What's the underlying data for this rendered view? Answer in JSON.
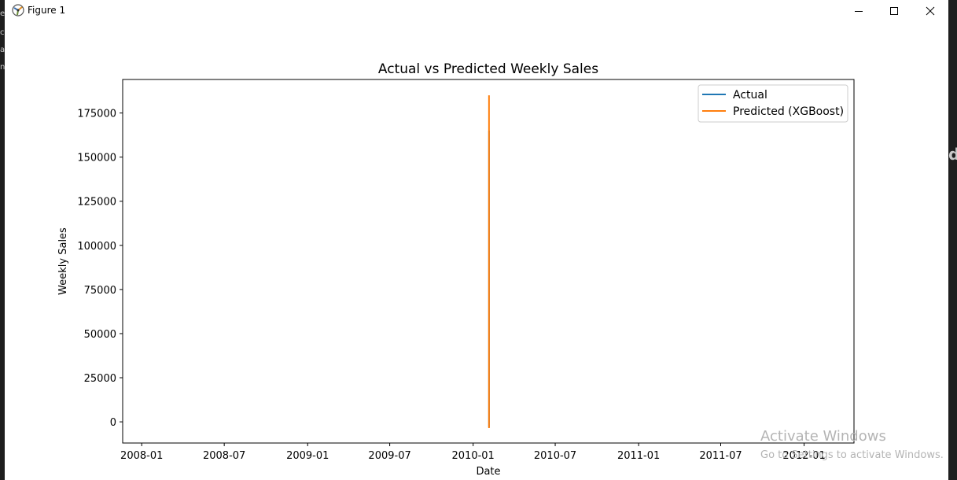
{
  "window": {
    "title": "Figure 1",
    "icon": "matplotlib-figure-icon",
    "controls": [
      "minimize-icon",
      "maximize-icon",
      "close-icon"
    ]
  },
  "watermark": {
    "line1": "Activate Windows",
    "line2": "Go to Settings to activate Windows."
  },
  "chart_data": {
    "type": "line",
    "title": "Actual vs Predicted Weekly Sales",
    "xlabel": "Date",
    "ylabel": "Weekly Sales",
    "x_ticks": [
      "2008-01",
      "2008-07",
      "2009-01",
      "2009-07",
      "2010-01",
      "2010-07",
      "2011-01",
      "2011-07",
      "2012-01"
    ],
    "y_ticks": [
      0,
      25000,
      50000,
      75000,
      100000,
      125000,
      150000,
      175000
    ],
    "xlim": [
      "2007-11-20",
      "2012-04-20"
    ],
    "ylim": [
      -12000,
      194000
    ],
    "legend_position": "top-right",
    "grid": false,
    "series": [
      {
        "name": "Actual",
        "color": "#1f77b4",
        "points": [
          {
            "x": "2010-02-05",
            "y": -3000
          },
          {
            "x": "2010-02-05",
            "y": 165000
          }
        ]
      },
      {
        "name": "Predicted (XGBoost)",
        "color": "#ff7f0e",
        "points": [
          {
            "x": "2010-02-05",
            "y": -3500
          },
          {
            "x": "2010-02-05",
            "y": 185000
          }
        ]
      }
    ]
  }
}
